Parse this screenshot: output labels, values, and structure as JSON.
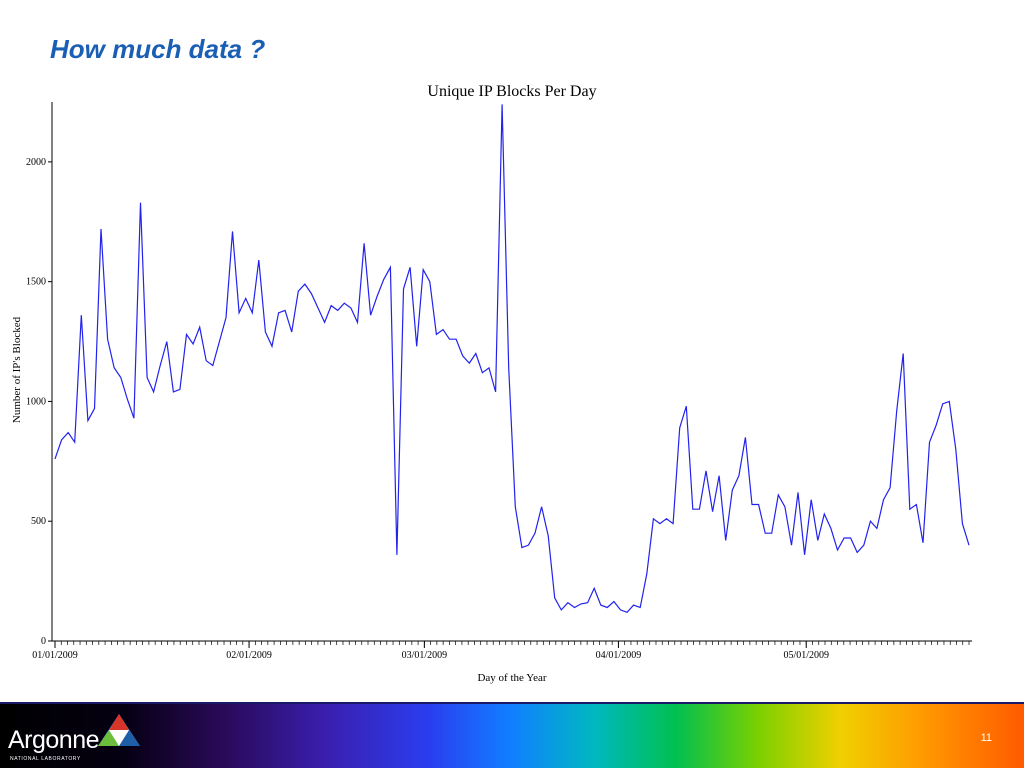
{
  "slide": {
    "title": "How much data ?",
    "page_number": "11"
  },
  "logo": {
    "name": "Argonne",
    "subtitle": "NATIONAL LABORATORY"
  },
  "colors": {
    "title": "#1a5fb4",
    "series_line": "#2222ee"
  },
  "chart_data": {
    "type": "line",
    "title": "Unique IP Blocks Per Day",
    "xlabel": "Day of the Year",
    "ylabel": "Number of IP's Blocked",
    "x_start": "01/01/2009",
    "x_end": "05/27/2009",
    "x_tick_labels": [
      "01/01/2009",
      "02/01/2009",
      "03/01/2009",
      "04/01/2009",
      "05/01/2009"
    ],
    "y_ticks": [
      0,
      500,
      1000,
      1500,
      2000
    ],
    "ylim": [
      0,
      2250
    ],
    "grid": false,
    "series": [
      {
        "values": [
          760,
          840,
          870,
          830,
          1360,
          920,
          970,
          1720,
          1260,
          1140,
          1100,
          1010,
          930,
          1830,
          1100,
          1040,
          1150,
          1250,
          1040,
          1050,
          1280,
          1240,
          1310,
          1170,
          1150,
          1250,
          1350,
          1710,
          1370,
          1430,
          1370,
          1590,
          1290,
          1230,
          1370,
          1380,
          1290,
          1460,
          1490,
          1450,
          1390,
          1330,
          1400,
          1380,
          1410,
          1390,
          1330,
          1660,
          1360,
          1440,
          1510,
          1560,
          360,
          1470,
          1560,
          1230,
          1550,
          1500,
          1280,
          1300,
          1260,
          1260,
          1190,
          1160,
          1200,
          1120,
          1140,
          1040,
          2240,
          1140,
          560,
          390,
          400,
          450,
          560,
          440,
          180,
          130,
          160,
          140,
          155,
          160,
          220,
          150,
          140,
          165,
          130,
          120,
          150,
          140,
          280,
          510,
          490,
          510,
          490,
          890,
          980,
          550,
          550,
          710,
          540,
          690,
          420,
          630,
          690,
          850,
          570,
          570,
          450,
          450,
          610,
          560,
          400,
          620,
          360,
          590,
          420,
          530,
          470,
          380,
          430,
          430,
          370,
          400,
          500,
          470,
          590,
          640,
          960,
          1200,
          550,
          570,
          410,
          830,
          900,
          990,
          1000,
          800,
          490,
          400
        ]
      }
    ]
  }
}
